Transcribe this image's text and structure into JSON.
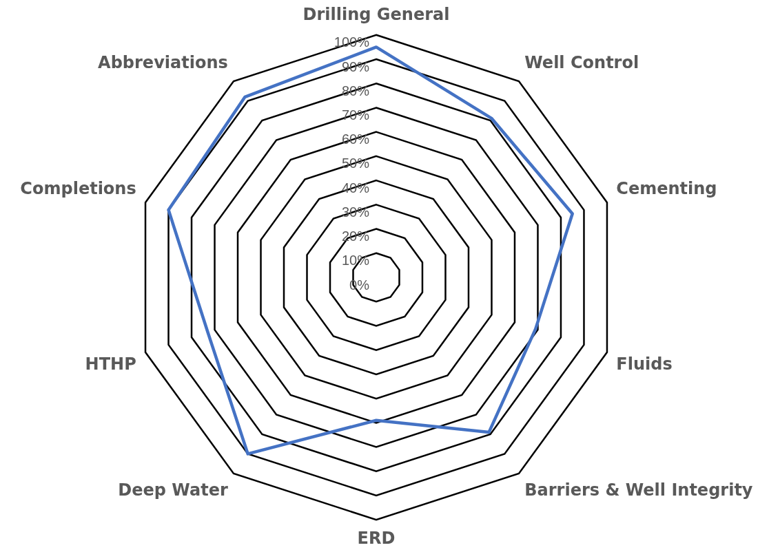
{
  "chart_data": {
    "type": "radar",
    "categories": [
      "Drilling General",
      "Well Control",
      "Cementing",
      "Fluids",
      "Barriers & Well Integrity",
      "ERD",
      "Deep Water",
      "HTHP",
      "Completions",
      "Abbreviations"
    ],
    "series": [
      {
        "color": "#4472c4",
        "values": [
          95,
          81,
          85,
          69,
          79,
          59,
          90,
          73,
          90,
          92
        ]
      }
    ],
    "ylim": [
      0,
      100
    ],
    "yticks": [
      {
        "value": 0,
        "label": "0%"
      },
      {
        "value": 10,
        "label": "10%"
      },
      {
        "value": 20,
        "label": "20%"
      },
      {
        "value": 30,
        "label": "30%"
      },
      {
        "value": 40,
        "label": "40%"
      },
      {
        "value": 50,
        "label": "50%"
      },
      {
        "value": 60,
        "label": "60%"
      },
      {
        "value": 70,
        "label": "70%"
      },
      {
        "value": 80,
        "label": "80%"
      },
      {
        "value": 90,
        "label": "90%"
      },
      {
        "value": 100,
        "label": "100%"
      }
    ],
    "grid": true,
    "legend": false,
    "marker": "none"
  }
}
